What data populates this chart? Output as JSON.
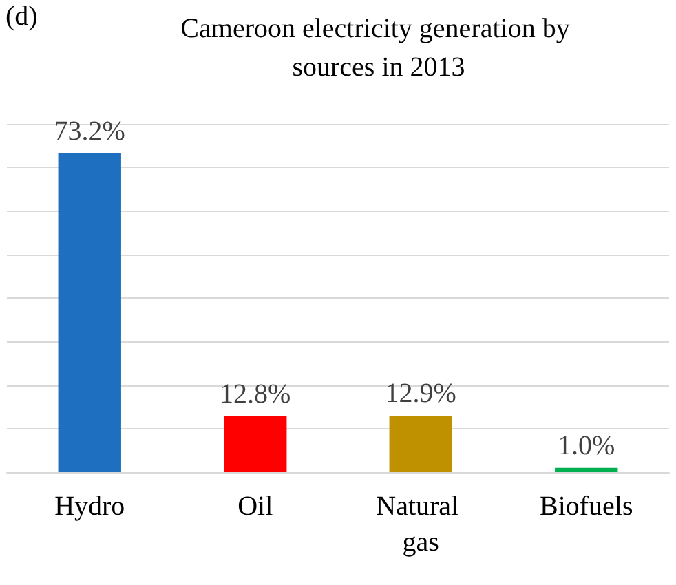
{
  "chart_data": {
    "type": "bar",
    "title": "Cameroon electricity generation by sources in 2013",
    "annotations": [
      "(d)"
    ],
    "categories": [
      "Hydro",
      "Oil",
      "Natural gas",
      "Biofuels"
    ],
    "values": [
      73.2,
      12.8,
      12.9,
      1.0
    ],
    "colors": [
      "#1f6fc0",
      "#ff0000",
      "#bf9000",
      "#00b050"
    ],
    "value_labels": [
      "73.2%",
      "12.8%",
      "12.9%",
      "1.0%"
    ],
    "ylim": [
      0,
      80
    ],
    "yticks": [
      {
        "value": 0,
        "label": null
      },
      {
        "value": 10,
        "label": null
      },
      {
        "value": 20,
        "label": null
      },
      {
        "value": 30,
        "label": null
      },
      {
        "value": 40,
        "label": null
      },
      {
        "value": 50,
        "label": null
      },
      {
        "value": 60,
        "label": null
      },
      {
        "value": 70,
        "label": null
      },
      {
        "value": 80,
        "label": null
      }
    ],
    "grid": "y",
    "tick_labels": "x"
  }
}
